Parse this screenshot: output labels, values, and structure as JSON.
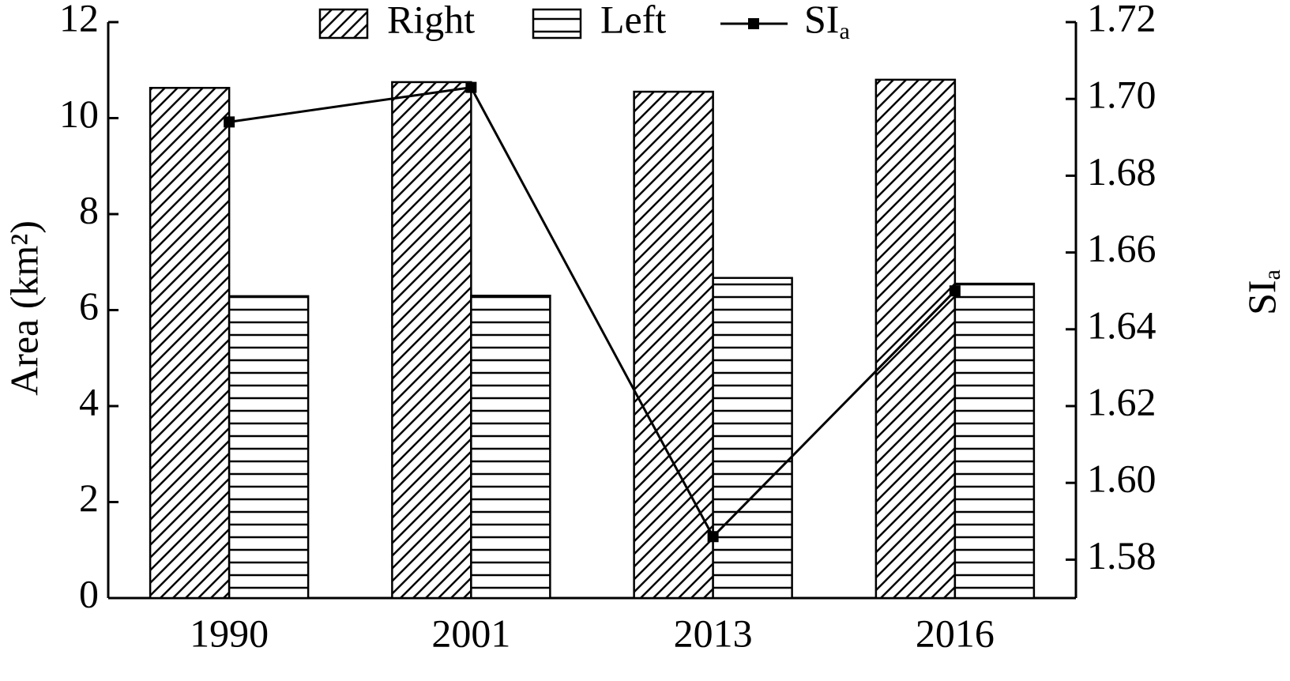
{
  "chart_data": {
    "type": "bar",
    "ylabel": "Area (km²)",
    "y2label": "SI",
    "y2label_subscript": "a",
    "categories": [
      "1990",
      "2001",
      "2013",
      "2016"
    ],
    "series": [
      {
        "name": "Right",
        "type": "bar",
        "pattern": "diagonal",
        "color": "#000000",
        "values": [
          10.63,
          10.75,
          10.55,
          10.8
        ]
      },
      {
        "name": "Left",
        "type": "bar",
        "pattern": "horizontal",
        "color": "#000000",
        "values": [
          6.29,
          6.3,
          6.67,
          6.55
        ]
      },
      {
        "name": "SI",
        "name_subscript": "a",
        "type": "line",
        "axis": "y2",
        "color": "#000000",
        "values": [
          1.694,
          1.703,
          1.586,
          1.65
        ]
      }
    ],
    "ylim": [
      0,
      12
    ],
    "yticks": [
      0,
      2,
      4,
      6,
      8,
      10,
      12
    ],
    "y2lim": [
      1.57,
      1.72
    ],
    "y2ticks": [
      {
        "value": 1.58,
        "label": "1.58"
      },
      {
        "value": 1.6,
        "label": "1.60"
      },
      {
        "value": 1.62,
        "label": "1.62"
      },
      {
        "value": 1.64,
        "label": "1.64"
      },
      {
        "value": 1.66,
        "label": "1.66"
      },
      {
        "value": 1.68,
        "label": "1.68"
      },
      {
        "value": 1.7,
        "label": "1.70"
      },
      {
        "value": 1.72,
        "label": "1.72"
      }
    ],
    "grid": false,
    "legend": "top"
  }
}
